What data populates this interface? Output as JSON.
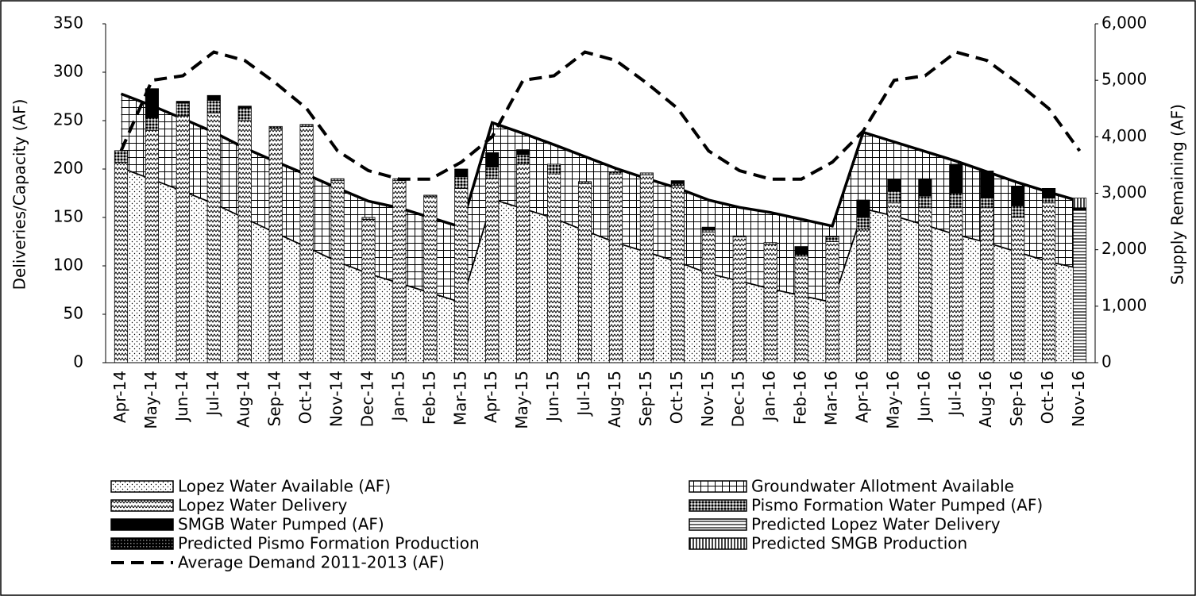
{
  "chart_data": {
    "type": "combo",
    "ylabel": "Deliveries/Capacity (AF)",
    "y2label": "Supply Remaining (AF)",
    "categories": [
      "Apr-14",
      "May-14",
      "Jun-14",
      "Jul-14",
      "Aug-14",
      "Sep-14",
      "Oct-14",
      "Nov-14",
      "Dec-14",
      "Jan-15",
      "Feb-15",
      "Mar-15",
      "Apr-15",
      "May-15",
      "Jun-15",
      "Jul-15",
      "Aug-15",
      "Sep-15",
      "Oct-15",
      "Nov-15",
      "Dec-15",
      "Jan-16",
      "Feb-16",
      "Mar-16",
      "Apr-16",
      "May-16",
      "Jun-16",
      "Jul-16",
      "Aug-16",
      "Sep-16",
      "Oct-16",
      "Nov-16"
    ],
    "ylim": [
      0,
      350
    ],
    "yticks": [
      0,
      50,
      100,
      150,
      200,
      250,
      300,
      350
    ],
    "y2lim": [
      0,
      6000
    ],
    "y2ticks": [
      0,
      {
        "value": 1000,
        "label": "1,000"
      },
      {
        "value": 2000,
        "label": "2,000"
      },
      {
        "value": 3000,
        "label": "3,000"
      },
      {
        "value": 4000,
        "label": "4,000"
      },
      {
        "value": 5000,
        "label": "5,000"
      },
      {
        "value": 6000,
        "label": "6,000"
      }
    ],
    "series": [
      {
        "name": "Lopez Water Available (AF)",
        "type": "area",
        "axis": "y2",
        "color": "#000000",
        "pattern": "dots",
        "values": [
          3460,
          3260,
          3050,
          2830,
          2570,
          2310,
          2060,
          1800,
          1590,
          1420,
          1250,
          1080,
          2910,
          2740,
          2570,
          2350,
          2140,
          1970,
          1800,
          1590,
          1460,
          1320,
          1200,
          1080,
          2740,
          2610,
          2450,
          2280,
          2140,
          1970,
          1800,
          1680
        ]
      },
      {
        "name": "Groundwater Allotment Available",
        "type": "area",
        "axis": "y2",
        "color": "#000000",
        "pattern": "grid",
        "values": [
          1300,
          1290,
          1270,
          1250,
          1230,
          1250,
          1270,
          1290,
          1270,
          1320,
          1320,
          1320,
          1340,
          1320,
          1290,
          1300,
          1300,
          1290,
          1290,
          1290,
          1290,
          1340,
          1340,
          1340,
          1340,
          1300,
          1290,
          1290,
          1240,
          1220,
          1220,
          1180
        ]
      },
      {
        "name": "Lopez Water Delivery",
        "type": "bar",
        "axis": "y",
        "color": "#000000",
        "pattern": "wave",
        "values": [
          207,
          240,
          255,
          258,
          250,
          242,
          244,
          188,
          148,
          188,
          172,
          180,
          190,
          205,
          195,
          185,
          195,
          194,
          183,
          135,
          130,
          122,
          110,
          125,
          138,
          165,
          160,
          160,
          160,
          150,
          165,
          null
        ]
      },
      {
        "name": "Pismo Formation Water Pumped (AF)",
        "type": "bar",
        "axis": "y",
        "color": "#000000",
        "pattern": "check",
        "values": [
          12,
          13,
          13,
          13,
          13,
          2,
          2,
          2,
          2,
          2,
          1,
          12,
          12,
          10,
          10,
          2,
          2,
          2,
          2,
          2,
          1,
          2,
          2,
          5,
          12,
          12,
          12,
          15,
          10,
          12,
          5,
          null
        ]
      },
      {
        "name": "SMGB Water Pumped (AF)",
        "type": "bar",
        "axis": "y",
        "color": "#000000",
        "pattern": "solid",
        "values": [
          0,
          30,
          2,
          5,
          2,
          0,
          0,
          0,
          0,
          0,
          0,
          8,
          15,
          5,
          0,
          0,
          0,
          0,
          3,
          3,
          0,
          0,
          8,
          0,
          18,
          12,
          18,
          30,
          28,
          20,
          10,
          null
        ]
      },
      {
        "name": "Predicted Lopez Water Delivery",
        "type": "bar",
        "axis": "y",
        "color": "#000000",
        "pattern": "hlines",
        "values": [
          null,
          null,
          null,
          null,
          null,
          null,
          null,
          null,
          null,
          null,
          null,
          null,
          null,
          null,
          null,
          null,
          null,
          null,
          null,
          null,
          null,
          null,
          null,
          null,
          null,
          null,
          null,
          null,
          null,
          null,
          null,
          158
        ]
      },
      {
        "name": "Predicted Pismo Formation Production",
        "type": "bar",
        "axis": "y",
        "color": "#000000",
        "pattern": "darkcheck",
        "values": [
          null,
          null,
          null,
          null,
          null,
          null,
          null,
          null,
          null,
          null,
          null,
          null,
          null,
          null,
          null,
          null,
          null,
          null,
          null,
          null,
          null,
          null,
          null,
          null,
          null,
          null,
          null,
          null,
          null,
          null,
          null,
          2
        ]
      },
      {
        "name": "Predicted SMGB Production",
        "type": "bar",
        "axis": "y",
        "color": "#000000",
        "pattern": "vlines",
        "values": [
          null,
          null,
          null,
          null,
          null,
          null,
          null,
          null,
          null,
          null,
          null,
          null,
          null,
          null,
          null,
          null,
          null,
          null,
          null,
          null,
          null,
          null,
          null,
          null,
          null,
          null,
          null,
          null,
          null,
          null,
          null,
          10
        ]
      },
      {
        "name": "Average Demand 2011-2013 (AF)",
        "type": "line",
        "axis": "y2",
        "color": "#000000",
        "dash": true,
        "values": [
          3750,
          5000,
          5080,
          5500,
          5350,
          4950,
          4500,
          3750,
          3400,
          3250,
          3250,
          3550,
          4000,
          5000,
          5080,
          5500,
          5350,
          4950,
          4500,
          3750,
          3400,
          3250,
          3250,
          3550,
          4100,
          5000,
          5080,
          5500,
          5350,
          4950,
          4500,
          3750
        ]
      }
    ]
  }
}
